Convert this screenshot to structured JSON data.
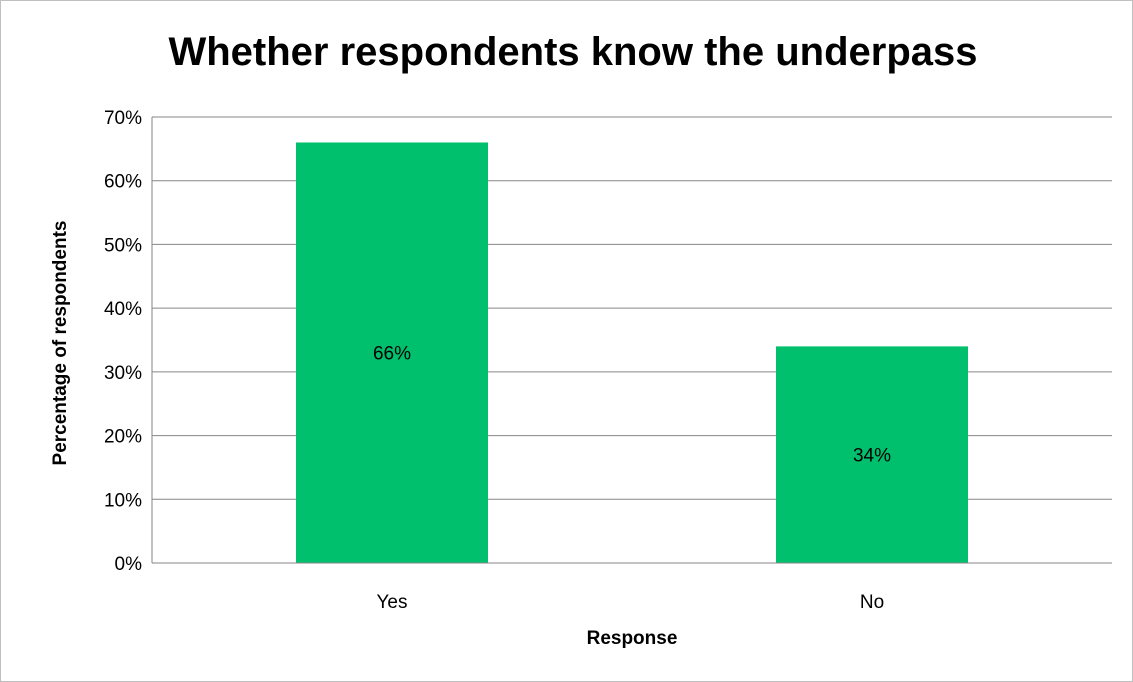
{
  "chart_data": {
    "type": "bar",
    "title": "Whether respondents know the underpass",
    "xlabel": "Response",
    "ylabel": "Percentage of respondents",
    "categories": [
      "Yes",
      "No"
    ],
    "values": [
      66,
      34
    ],
    "data_labels": [
      "66%",
      "34%"
    ],
    "ylim": [
      0,
      70
    ],
    "yticks": [
      0,
      10,
      20,
      30,
      40,
      50,
      60,
      70
    ],
    "ytick_labels": [
      "0%",
      "10%",
      "20%",
      "30%",
      "40%",
      "50%",
      "60%",
      "70%"
    ],
    "grid": true,
    "legend": "none",
    "bar_color": "#00c06e"
  }
}
